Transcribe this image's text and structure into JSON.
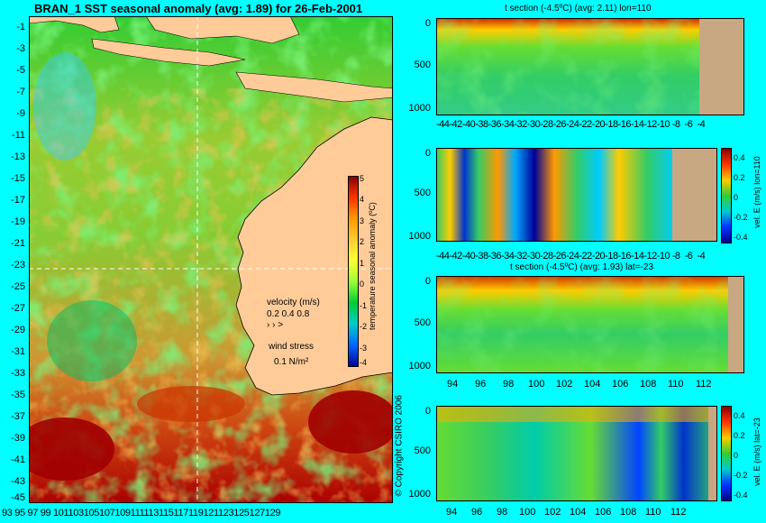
{
  "map": {
    "title": "BRAN_1 SST seasonal anomaly (avg: 1.89) for 26-Feb-2001",
    "lat_ticks": [
      "-1",
      "-3",
      "-5",
      "-7",
      "-9",
      "-11",
      "-13",
      "-15",
      "-17",
      "-19",
      "-21",
      "-23",
      "-25",
      "-27",
      "-29",
      "-31",
      "-33",
      "-35",
      "-37",
      "-39",
      "-41",
      "-43",
      "-45"
    ],
    "lon_ticks": [
      "93",
      "95",
      "97",
      "99",
      "101",
      "103",
      "105",
      "107",
      "109",
      "111",
      "113",
      "115",
      "117",
      "119",
      "121",
      "123",
      "125",
      "127",
      "129"
    ],
    "lon_axis_text": "93 95 97 99 101103105107109111113115117119121123125127129",
    "colorbar_ticks": [
      "5",
      "4",
      "3",
      "2",
      "1",
      "0",
      "-1",
      "-2",
      "-3",
      "-4"
    ],
    "colorbar_label": "temperature seasonal anomaly (ºC)",
    "velocity_label": "velocity (m/s)",
    "velocity_scale": "0.2 0.4 0.8",
    "wind_label": "wind stress",
    "wind_scale": "0.1 N/m²",
    "copyright": "© Copyright CSIRO 2006"
  },
  "panels": [
    {
      "title": "t section (-4.5ºC) (avg: 2.11) lon=110",
      "x_ticks": [
        "-44",
        "-42",
        "-40",
        "-38",
        "-36",
        "-34",
        "-32",
        "-30",
        "-28",
        "-26",
        "-24",
        "-22",
        "-20",
        "-18",
        "-16",
        "-14",
        "-12",
        "-10",
        "-8",
        "-6",
        "-4"
      ],
      "x_axis_text": "-44-42-40-38-36-34-32-30-28-26-24-22-20-18-16-14-12-10 -8  -6  -4",
      "y_ticks": [
        "0",
        "500",
        "1000"
      ]
    },
    {
      "title": "",
      "x_ticks": [
        "-44",
        "-42",
        "-40",
        "-38",
        "-36",
        "-34",
        "-32",
        "-30",
        "-28",
        "-26",
        "-24",
        "-22",
        "-20",
        "-18",
        "-16",
        "-14",
        "-12",
        "-10",
        "-8",
        "-6",
        "-4"
      ],
      "x_axis_text": "-44-42-40-38-36-34-32-30-28-26-24-22-20-18-16-14-12-10 -8  -6  -4",
      "y_ticks": [
        "0",
        "500",
        "1000"
      ],
      "colorbar_ticks": [
        "0.4",
        "0.2",
        "0",
        "-0.2",
        "-0.4"
      ],
      "colorbar_label": "vel. E (m/s) lon=110"
    },
    {
      "title": "t section (-4.5ºC) (avg: 1.93) lat=-23",
      "x_ticks": [
        "94",
        "96",
        "98",
        "100",
        "102",
        "104",
        "106",
        "108",
        "110",
        "112"
      ],
      "y_ticks": [
        "0",
        "500",
        "1000"
      ]
    },
    {
      "title": "",
      "x_ticks": [
        "94",
        "96",
        "98",
        "100",
        "102",
        "104",
        "106",
        "108",
        "110",
        "112"
      ],
      "y_ticks": [
        "0",
        "500",
        "1000"
      ],
      "colorbar_ticks": [
        "0.4",
        "0.2",
        "0",
        "-0.2",
        "-0.4"
      ],
      "colorbar_label": "vel. E (m/s) lat=-23"
    }
  ],
  "chart_data": [
    {
      "type": "heatmap",
      "title": "BRAN_1 SST seasonal anomaly (avg: 1.89) for 26-Feb-2001",
      "xlabel": "",
      "ylabel": "",
      "xlim": [
        93,
        130
      ],
      "ylim": [
        -45,
        0
      ],
      "colorbar": {
        "label": "temperature seasonal anomaly (ºC)",
        "range": [
          -4,
          5
        ]
      }
    },
    {
      "type": "heatmap",
      "title": "t section (-4.5ºC) (avg: 2.11) lon=110",
      "xlim": [
        -45,
        -3
      ],
      "ylim": [
        1050,
        0
      ]
    },
    {
      "type": "heatmap",
      "title": "",
      "xlim": [
        -45,
        -3
      ],
      "ylim": [
        1050,
        0
      ],
      "colorbar": {
        "label": "vel. E (m/s) lon=110",
        "range": [
          -0.4,
          0.4
        ]
      }
    },
    {
      "type": "heatmap",
      "title": "t section (-4.5ºC) (avg: 1.93) lat=-23",
      "xlim": [
        93,
        114
      ],
      "ylim": [
        1050,
        0
      ]
    },
    {
      "type": "heatmap",
      "title": "",
      "xlim": [
        93,
        114
      ],
      "ylim": [
        1050,
        0
      ],
      "colorbar": {
        "label": "vel. E (m/s) lat=-23",
        "range": [
          -0.4,
          0.4
        ]
      }
    }
  ]
}
